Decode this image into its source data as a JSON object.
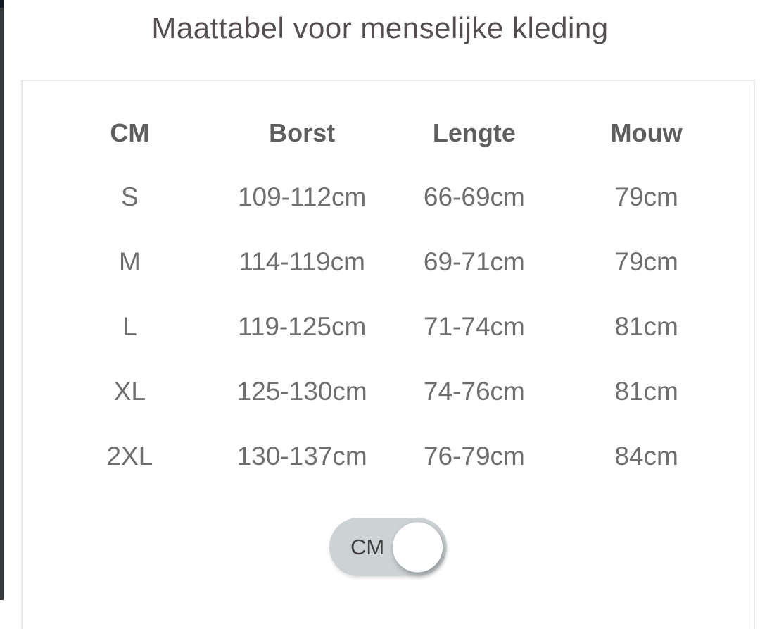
{
  "page": {
    "title": "Maattabel voor menselijke kleding"
  },
  "table": {
    "headers": [
      "CM",
      "Borst",
      "Lengte",
      "Mouw"
    ],
    "rows": [
      {
        "size": "S",
        "borst": "109-112cm",
        "lengte": "66-69cm",
        "mouw": "79cm"
      },
      {
        "size": "M",
        "borst": "114-119cm",
        "lengte": "69-71cm",
        "mouw": "79cm"
      },
      {
        "size": "L",
        "borst": "119-125cm",
        "lengte": "71-74cm",
        "mouw": "81cm"
      },
      {
        "size": "XL",
        "borst": "125-130cm",
        "lengte": "74-76cm",
        "mouw": "81cm"
      },
      {
        "size": "2XL",
        "borst": "130-137cm",
        "lengte": "76-79cm",
        "mouw": "84cm"
      }
    ]
  },
  "toggle": {
    "label": "CM",
    "state": "on"
  },
  "colors": {
    "title_text": "#544e4e",
    "header_text": "#5e5e5e",
    "cell_text": "#6e6e6e",
    "panel_border": "#e9e9e9",
    "toggle_pill": "#cdd2d5",
    "toggle_knob": "#ffffff",
    "edge_stripe": "#35393c"
  }
}
